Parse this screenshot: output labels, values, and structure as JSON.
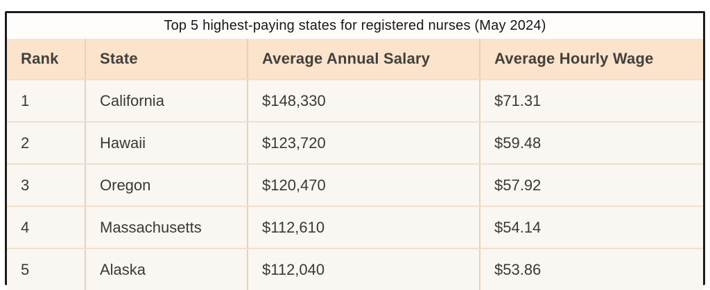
{
  "chart_data": {
    "type": "table",
    "title": "Top 5 highest-paying states for registered nurses (May 2024)",
    "columns": [
      "Rank",
      "State",
      "Average Annual Salary",
      "Average Hourly Wage"
    ],
    "rows": [
      [
        "1",
        "California",
        "$148,330",
        "$71.31"
      ],
      [
        "2",
        "Hawaii",
        "$123,720",
        "$59.48"
      ],
      [
        "3",
        "Oregon",
        "$120,470",
        "$57.92"
      ],
      [
        "4",
        "Massachusetts",
        "$112,610",
        "$54.14"
      ],
      [
        "5",
        "Alaska",
        "$112,040",
        "$53.86"
      ]
    ],
    "layout": {
      "header_position": "top",
      "grid": "horizontal and vertical dividers",
      "outer_border": "thick dark border"
    }
  },
  "colors": {
    "header_bg": "#fbe3cc",
    "row_bg": "#faf6f1",
    "title_bg": "#fffdfb",
    "column_divider": "#e6d2b6",
    "row_divider": "#f2dfca",
    "outer_border": "#1e1c1a",
    "header_text": "#42403c",
    "body_text": "#3a3836",
    "title_text": "#161616"
  }
}
